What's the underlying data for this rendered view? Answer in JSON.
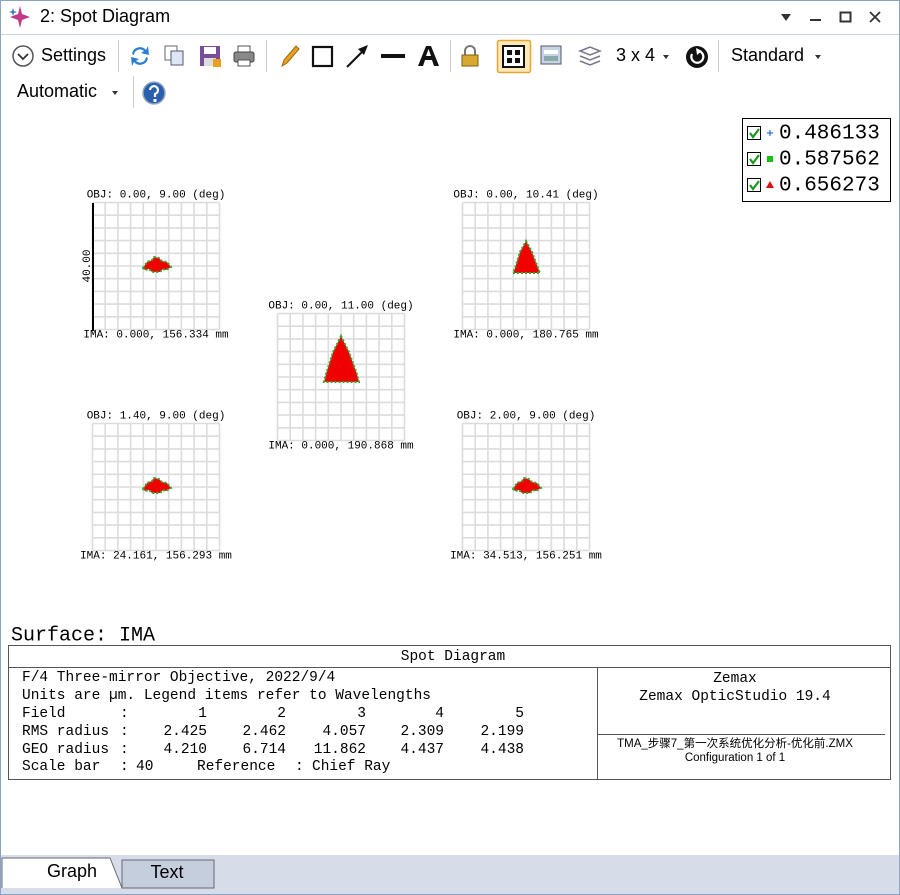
{
  "window": {
    "title": "2: Spot Diagram"
  },
  "toolbar": {
    "settings": "Settings",
    "layout": "3 x 4",
    "style": "Standard",
    "refresh": "Automatic"
  },
  "legend": [
    "0.486133",
    "0.587562",
    "0.656273"
  ],
  "plots": [
    {
      "obj": "OBJ: 0.00, 9.00 (deg)",
      "ima": "IMA: 0.000, 156.334 mm"
    },
    {
      "obj": "OBJ: 0.00, 11.00 (deg)",
      "ima": "IMA: 0.000, 190.868 mm"
    },
    {
      "obj": "OBJ: 0.00, 10.41 (deg)",
      "ima": "IMA: 0.000, 180.765 mm"
    },
    {
      "obj": "OBJ: 1.40, 9.00 (deg)",
      "ima": "IMA: 24.161, 156.293 mm"
    },
    {
      "obj": "OBJ: 2.00, 9.00 (deg)",
      "ima": "IMA: 34.513, 156.251 mm"
    }
  ],
  "scale_bar_label": "40.00",
  "surface": "Surface: IMA",
  "info": {
    "header": "Spot Diagram",
    "title": "F/4 Three-mirror Objective, 2022/9/4",
    "units": "Units are µm. Legend items refer to Wavelengths",
    "separator": ":",
    "rows": [
      {
        "label": "Field",
        "values": [
          "1",
          "2",
          "3",
          "4",
          "5"
        ]
      },
      {
        "label": "RMS radius",
        "values": [
          "2.425",
          "2.462",
          "4.057",
          "2.309",
          "2.199"
        ]
      },
      {
        "label": "GEO radius",
        "values": [
          "4.210",
          "6.714",
          "11.862",
          "4.437",
          "4.438"
        ]
      }
    ],
    "scale_bar_name": "Scale bar",
    "scale_bar": "40",
    "reference_name": "Reference",
    "reference": "Chief Ray",
    "company": "Zemax",
    "product": "Zemax OpticStudio 19.4",
    "file": "TMA_步骤7_第一次系统优化分析-优化前.ZMX",
    "configuration": "Configuration 1 of 1"
  },
  "tabs": [
    "Graph",
    "Text"
  ]
}
